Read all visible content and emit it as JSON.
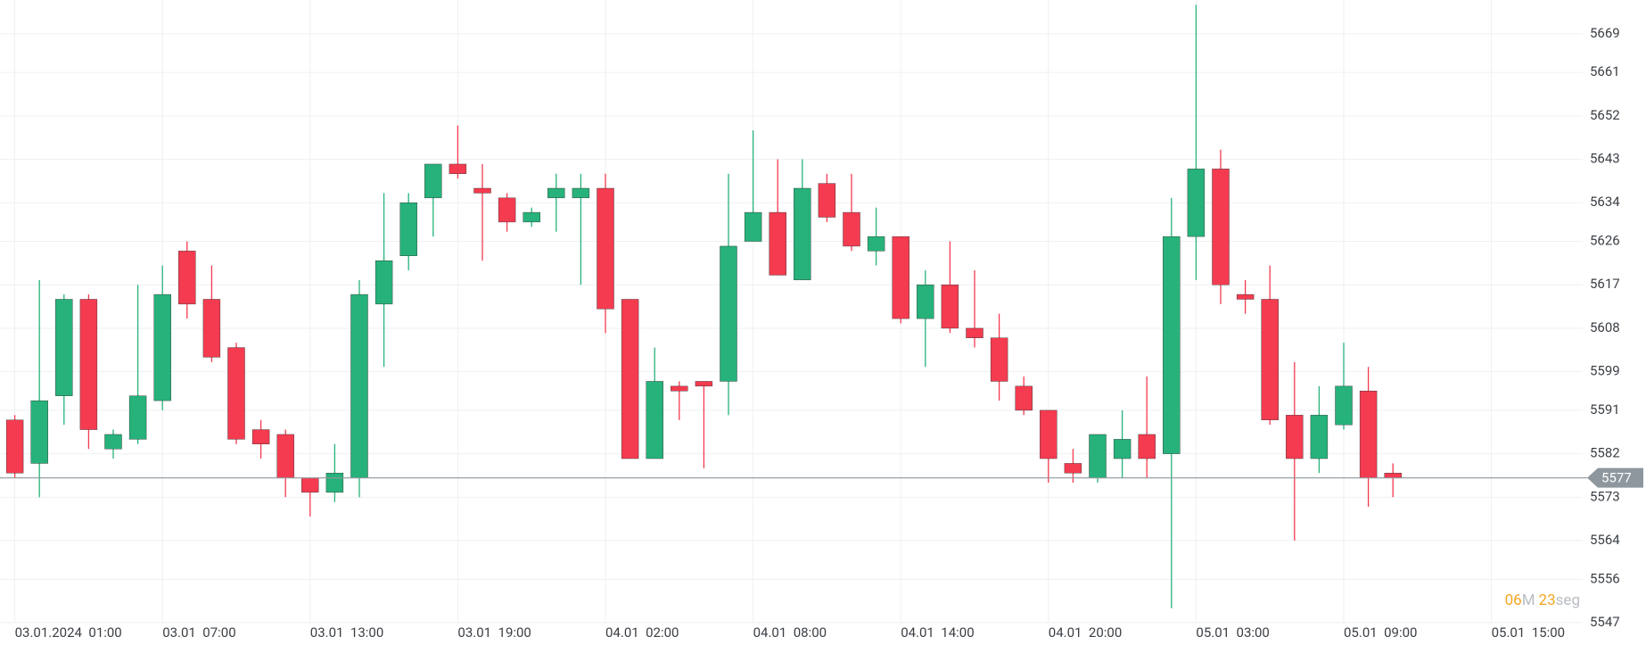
{
  "chart_data": {
    "type": "candlestick",
    "categories": [
      "03.01.2024  01:00",
      null,
      null,
      null,
      null,
      null,
      "03.01  07:00",
      null,
      null,
      null,
      null,
      null,
      "03.01  13:00",
      null,
      null,
      null,
      null,
      null,
      "03.01  19:00",
      null,
      null,
      null,
      null,
      null,
      "04.01  02:00",
      null,
      null,
      null,
      null,
      null,
      "04.01  08:00",
      null,
      null,
      null,
      null,
      null,
      "04.01  14:00",
      null,
      null,
      null,
      null,
      null,
      "04.01  20:00",
      null,
      null,
      null,
      null,
      null,
      "05.01  03:00",
      null,
      null,
      null,
      null,
      null,
      "05.01  09:00",
      null,
      null,
      null,
      null,
      null,
      "05.01  15:00"
    ],
    "open": [
      5589,
      5580,
      5594,
      5614,
      5583,
      5585,
      5593,
      5624,
      5614,
      5604,
      5587,
      5586,
      5577,
      5574,
      5577,
      5613,
      5623,
      5635,
      5642,
      5637,
      5635,
      5630,
      5635,
      5635,
      5637,
      5614,
      5581,
      5596,
      5597,
      5597,
      5626,
      5632,
      5618,
      5638,
      5632,
      5624,
      5627,
      5610,
      5617,
      5608,
      5606,
      5596,
      5591,
      5580,
      5577,
      5581,
      5586,
      5582,
      5627,
      5641,
      5615,
      5614,
      5590,
      5581,
      5588,
      5595,
      5578,
      null,
      null,
      null,
      null
    ],
    "high": [
      5590,
      5618,
      5615,
      5615,
      5587,
      5617,
      5621,
      5626,
      5621,
      5605,
      5589,
      5587,
      5577,
      5584,
      5618,
      5636,
      5636,
      5642,
      5650,
      5642,
      5636,
      5633,
      5640,
      5640,
      5640,
      5614,
      5604,
      5597,
      5597,
      5640,
      5649,
      5643,
      5643,
      5640,
      5640,
      5633,
      5627,
      5620,
      5626,
      5620,
      5611,
      5598,
      5591,
      5583,
      5586,
      5591,
      5598,
      5635,
      5675,
      5645,
      5618,
      5621,
      5601,
      5596,
      5605,
      5600,
      5580,
      null,
      null,
      null,
      null
    ],
    "low": [
      5577,
      5573,
      5588,
      5583,
      5581,
      5584,
      5591,
      5610,
      5601,
      5584,
      5581,
      5573,
      5569,
      5572,
      5573,
      5600,
      5620,
      5627,
      5639,
      5622,
      5628,
      5629,
      5628,
      5617,
      5607,
      5581,
      5581,
      5589,
      5579,
      5590,
      5626,
      5619,
      5618,
      5630,
      5624,
      5621,
      5609,
      5600,
      5607,
      5604,
      5593,
      5590,
      5576,
      5576,
      5576,
      5577,
      5577,
      5550,
      5618,
      5613,
      5611,
      5588,
      5564,
      5578,
      5587,
      5571,
      5573,
      null,
      null,
      null,
      null
    ],
    "close": [
      5578,
      5593,
      5614,
      5587,
      5586,
      5594,
      5615,
      5613,
      5602,
      5585,
      5584,
      5577,
      5574,
      5578,
      5615,
      5622,
      5634,
      5642,
      5640,
      5636,
      5630,
      5632,
      5637,
      5637,
      5612,
      5581,
      5597,
      5595,
      5596,
      5625,
      5632,
      5619,
      5637,
      5631,
      5625,
      5627,
      5610,
      5617,
      5608,
      5606,
      5597,
      5591,
      5581,
      5578,
      5586,
      5585,
      5581,
      5627,
      5641,
      5617,
      5614,
      5589,
      5581,
      5590,
      5596,
      5577,
      5577,
      null,
      null,
      null,
      null
    ],
    "up_color": "#26b27a",
    "down_color": "#f43b50",
    "ylim": [
      5547,
      5676
    ],
    "yticks": [
      5669,
      5661,
      5652,
      5643,
      5634,
      5626,
      5617,
      5608,
      5599,
      5591,
      5582,
      5573,
      5564,
      5556,
      5547
    ],
    "grid": true,
    "current_price": 5577,
    "countdown": {
      "minutes": "06",
      "minutes_unit": "M",
      "seconds": "23",
      "seconds_unit": "seg"
    }
  }
}
